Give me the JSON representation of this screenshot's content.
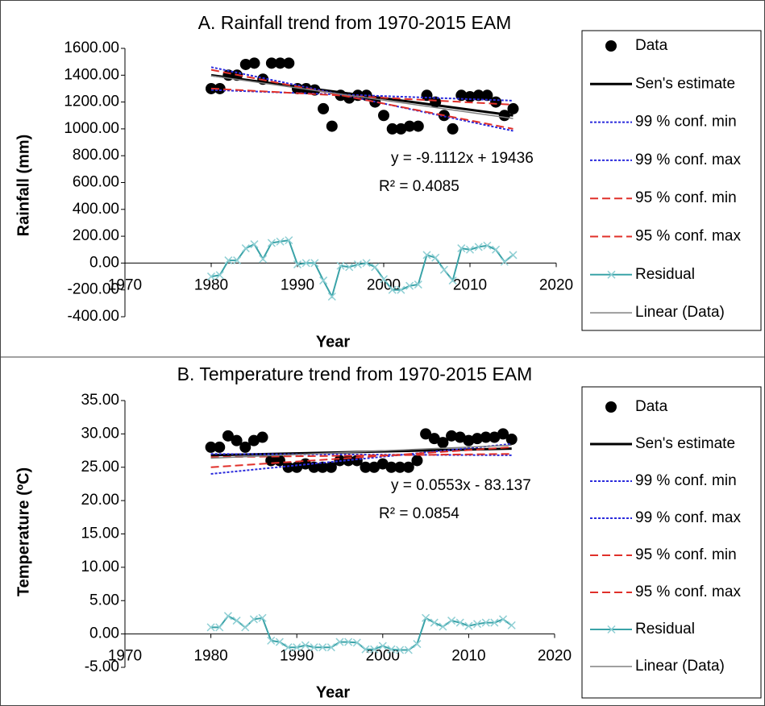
{
  "chart_data": [
    {
      "type": "line",
      "title": "A. Rainfall trend from 1970-2015 EAM",
      "xlabel": "Year",
      "ylabel": "Rainfall (mm)",
      "xlim": [
        1970,
        2020
      ],
      "xticks": [
        1970,
        1980,
        1990,
        2000,
        2010,
        2020
      ],
      "ylim": [
        -400,
        1600
      ],
      "yticks": [
        {
          "value": -400,
          "label": "-400.00"
        },
        {
          "value": -200,
          "label": "-200.00"
        },
        {
          "value": 0,
          "label": "0.00"
        },
        {
          "value": 200,
          "label": "200.00"
        },
        {
          "value": 400,
          "label": "400.00"
        },
        {
          "value": 600,
          "label": "600.00"
        },
        {
          "value": 800,
          "label": "800.00"
        },
        {
          "value": 1000,
          "label": "1000.00"
        },
        {
          "value": 1200,
          "label": "1200.00"
        },
        {
          "value": 1400,
          "label": "1400.00"
        },
        {
          "value": 1600,
          "label": "1600.00"
        }
      ],
      "annotations": [
        "y = -9.1112x + 19436",
        "R² = 0.4085"
      ],
      "legend": "right",
      "series": [
        {
          "name": "Data",
          "style": "marker",
          "color": "#000000",
          "x": [
            1980,
            1981,
            1982,
            1983,
            1984,
            1985,
            1986,
            1987,
            1988,
            1989,
            1990,
            1991,
            1992,
            1993,
            1994,
            1995,
            1996,
            1997,
            1998,
            1999,
            2000,
            2001,
            2002,
            2003,
            2004,
            2005,
            2006,
            2007,
            2008,
            2009,
            2010,
            2011,
            2012,
            2013,
            2014,
            2015
          ],
          "values": [
            1300,
            1300,
            1400,
            1400,
            1480,
            1490,
            1370,
            1490,
            1490,
            1490,
            1300,
            1300,
            1290,
            1150,
            1020,
            1250,
            1230,
            1250,
            1250,
            1200,
            1100,
            1000,
            1000,
            1020,
            1020,
            1250,
            1200,
            1100,
            1000,
            1250,
            1240,
            1250,
            1250,
            1200,
            1100,
            1150
          ]
        },
        {
          "name": "Sen's estimate",
          "style": "thick",
          "color": "#000000",
          "x": [
            1980,
            2015
          ],
          "values": [
            1400,
            1100
          ]
        },
        {
          "name": "99 % conf. min",
          "style": "dotted",
          "color": "#2b2bdc",
          "x": [
            1980,
            2015
          ],
          "values": [
            1460,
            985
          ]
        },
        {
          "name": "99 % conf. max",
          "style": "dotted",
          "color": "#2b2bdc",
          "x": [
            1980,
            2015
          ],
          "values": [
            1290,
            1210
          ]
        },
        {
          "name": "95 % conf. min",
          "style": "dashed",
          "color": "#e0302a",
          "x": [
            1980,
            2015
          ],
          "values": [
            1440,
            1000
          ]
        },
        {
          "name": "95 % conf. max",
          "style": "dashed",
          "color": "#e0302a",
          "x": [
            1980,
            2015
          ],
          "values": [
            1300,
            1180
          ]
        },
        {
          "name": "Residual",
          "style": "cross",
          "color": "#3aa3a8",
          "x": [
            1980,
            1981,
            1982,
            1983,
            1984,
            1985,
            1986,
            1987,
            1988,
            1989,
            1990,
            1991,
            1992,
            1993,
            1994,
            1995,
            1996,
            1997,
            1998,
            1999,
            2000,
            2001,
            2002,
            2003,
            2004,
            2005,
            2006,
            2007,
            2008,
            2009,
            2010,
            2011,
            2012,
            2013,
            2014,
            2015
          ],
          "values": [
            -100,
            -90,
            20,
            20,
            110,
            140,
            30,
            150,
            160,
            170,
            -10,
            0,
            0,
            -130,
            -250,
            -20,
            -30,
            -10,
            0,
            -30,
            -120,
            -200,
            -200,
            -170,
            -160,
            60,
            40,
            -50,
            -130,
            110,
            100,
            120,
            130,
            100,
            10,
            60
          ]
        },
        {
          "name": "Linear (Data)",
          "style": "thin",
          "color": "#808080",
          "x": [
            1980,
            2015
          ],
          "values": [
            1395.8,
            1076.9
          ]
        }
      ]
    },
    {
      "type": "line",
      "title": "B. Temperature trend from 1970-2015 EAM",
      "xlabel": "Year",
      "ylabel": "Temperature (ºC)",
      "xlim": [
        1970,
        2020
      ],
      "xticks": [
        1970,
        1980,
        1990,
        2000,
        2010,
        2020
      ],
      "ylim": [
        -5,
        35
      ],
      "yticks": [
        {
          "value": -5,
          "label": "-5.00"
        },
        {
          "value": 0,
          "label": "0.00"
        },
        {
          "value": 5,
          "label": "5.00"
        },
        {
          "value": 10,
          "label": "10.00"
        },
        {
          "value": 15,
          "label": "15.00"
        },
        {
          "value": 20,
          "label": "20.00"
        },
        {
          "value": 25,
          "label": "25.00"
        },
        {
          "value": 30,
          "label": "30.00"
        },
        {
          "value": 35,
          "label": "35.00"
        }
      ],
      "annotations": [
        "y = 0.0553x - 83.137",
        "R² = 0.0854"
      ],
      "legend": "right",
      "series": [
        {
          "name": "Data",
          "style": "marker",
          "color": "#000000",
          "x": [
            1980,
            1981,
            1982,
            1983,
            1984,
            1985,
            1986,
            1987,
            1988,
            1989,
            1990,
            1991,
            1992,
            1993,
            1994,
            1995,
            1996,
            1997,
            1998,
            1999,
            2000,
            2001,
            2002,
            2003,
            2004,
            2005,
            2006,
            2007,
            2008,
            2009,
            2010,
            2011,
            2012,
            2013,
            2014,
            2015
          ],
          "values": [
            28,
            28,
            29.7,
            29,
            28,
            29,
            29.5,
            26,
            26,
            25,
            25,
            25.5,
            25,
            25,
            25,
            26,
            26,
            26,
            25,
            25,
            25.5,
            25,
            25,
            25,
            26,
            30,
            29.3,
            28.7,
            29.7,
            29.5,
            29,
            29.3,
            29.5,
            29.5,
            30,
            29.2
          ]
        },
        {
          "name": "Sen's estimate",
          "style": "thick",
          "color": "#000000",
          "x": [
            1980,
            2015
          ],
          "values": [
            26.8,
            27.8
          ]
        },
        {
          "name": "99 % conf. min",
          "style": "dotted",
          "color": "#2b2bdc",
          "x": [
            1980,
            2015
          ],
          "values": [
            24,
            28.5
          ]
        },
        {
          "name": "99 % conf. max",
          "style": "dotted",
          "color": "#2b2bdc",
          "x": [
            1980,
            2015
          ],
          "values": [
            27,
            26.8
          ]
        },
        {
          "name": "95 % conf. min",
          "style": "dashed",
          "color": "#e0302a",
          "x": [
            1980,
            2015
          ],
          "values": [
            25,
            28
          ]
        },
        {
          "name": "95 % conf. max",
          "style": "dashed",
          "color": "#e0302a",
          "x": [
            1980,
            2015
          ],
          "values": [
            26.5,
            27
          ]
        },
        {
          "name": "Residual",
          "style": "cross",
          "color": "#3aa3a8",
          "x": [
            1980,
            1981,
            1982,
            1983,
            1984,
            1985,
            1986,
            1987,
            1988,
            1989,
            1990,
            1991,
            1992,
            1993,
            1994,
            1995,
            1996,
            1997,
            1998,
            1999,
            2000,
            2001,
            2002,
            2003,
            2004,
            2005,
            2006,
            2007,
            2008,
            2009,
            2010,
            2011,
            2012,
            2013,
            2014,
            2015
          ],
          "values": [
            1,
            1,
            2.7,
            2,
            1,
            2.2,
            2.4,
            -1,
            -1.2,
            -2,
            -2,
            -1.7,
            -2,
            -2,
            -2,
            -1.2,
            -1.2,
            -1.3,
            -2.3,
            -2.3,
            -1.8,
            -2.3,
            -2.4,
            -2.4,
            -1.5,
            2.4,
            1.7,
            1.1,
            2,
            1.7,
            1.2,
            1.5,
            1.7,
            1.7,
            2.2,
            1.3
          ]
        },
        {
          "name": "Linear (Data)",
          "style": "thin",
          "color": "#808080",
          "x": [
            1980,
            2015
          ],
          "values": [
            26.36,
            28.29
          ]
        }
      ]
    }
  ]
}
